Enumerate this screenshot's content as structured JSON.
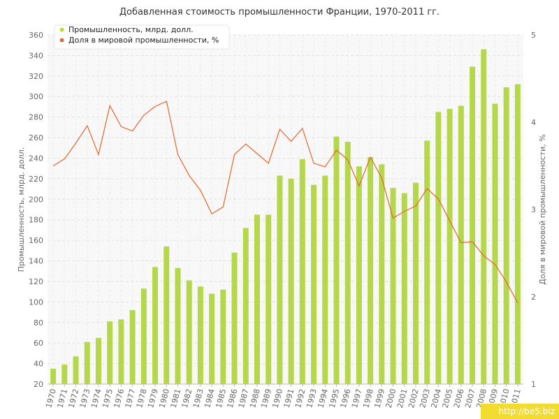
{
  "chart_data": {
    "type": "bar",
    "title": "Добавленная стоимость промышленности Франции, 1970-2011 гг.",
    "ylabel": "Промышленность, млрд. долл.",
    "y2label": "Доля в мировой промышленности, %",
    "ylim": [
      20,
      360
    ],
    "y2lim": [
      1,
      5
    ],
    "yticks": [
      20,
      40,
      60,
      80,
      100,
      120,
      140,
      160,
      180,
      200,
      220,
      240,
      260,
      280,
      300,
      320,
      340,
      360
    ],
    "y2ticks": [
      1,
      2,
      3,
      4,
      5
    ],
    "grid": true,
    "legend_position": "top-left",
    "categories": [
      "1970",
      "1971",
      "1972",
      "1973",
      "1974",
      "1975",
      "1976",
      "1977",
      "1978",
      "1979",
      "1980",
      "1981",
      "1982",
      "1983",
      "1984",
      "1985",
      "1986",
      "1987",
      "1988",
      "1989",
      "1990",
      "1991",
      "1992",
      "1993",
      "1994",
      "1995",
      "1996",
      "1997",
      "1998",
      "1999",
      "2000",
      "2001",
      "2002",
      "2003",
      "2004",
      "2005",
      "2006",
      "2007",
      "2008",
      "2009",
      "2010",
      "2011"
    ],
    "series": [
      {
        "name": "Промышленность, млрд. долл.",
        "type": "bar",
        "axis": "left",
        "color": "#b5d84a",
        "values": [
          35,
          39,
          47,
          61,
          65,
          81,
          83,
          92,
          113,
          134,
          154,
          133,
          121,
          115,
          108,
          112,
          148,
          172,
          185,
          185,
          223,
          220,
          239,
          214,
          223,
          261,
          256,
          232,
          241,
          234,
          211,
          206,
          216,
          257,
          285,
          288,
          291,
          329,
          346,
          293,
          309,
          312
        ]
      },
      {
        "name": "Доля в мировой промышленности, %",
        "type": "line",
        "axis": "right",
        "color": "#e5652e",
        "values": [
          3.5,
          3.58,
          3.76,
          3.96,
          3.63,
          4.19,
          3.95,
          3.9,
          4.08,
          4.18,
          4.24,
          3.63,
          3.39,
          3.22,
          2.95,
          3.03,
          3.63,
          3.75,
          3.64,
          3.53,
          3.92,
          3.78,
          3.93,
          3.53,
          3.49,
          3.68,
          3.57,
          3.27,
          3.6,
          3.36,
          2.9,
          2.98,
          3.04,
          3.24,
          3.12,
          2.87,
          2.62,
          2.63,
          2.47,
          2.37,
          2.17,
          1.93
        ]
      }
    ]
  },
  "watermark": "http://be5.biz"
}
